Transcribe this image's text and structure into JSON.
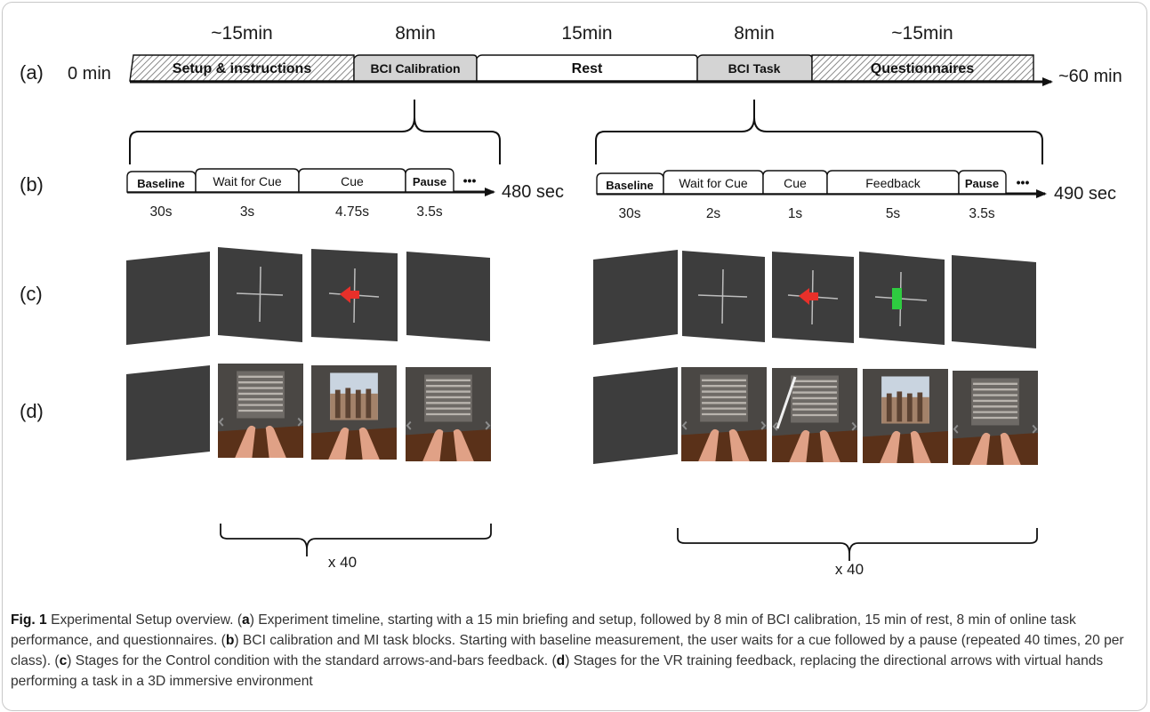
{
  "row_labels": [
    "(a)",
    "(b)",
    "(c)",
    "(d)"
  ],
  "timeline_a": {
    "start": "0 min",
    "end": "~60 min",
    "segments": [
      {
        "label": "Setup & instructions",
        "duration": "~15min"
      },
      {
        "label": "BCI Calibration",
        "duration": "8min"
      },
      {
        "label": "Rest",
        "duration": "15min"
      },
      {
        "label": "BCI Task",
        "duration": "8min"
      },
      {
        "label": "Questionnaires",
        "duration": "~15min"
      }
    ]
  },
  "calibration_b": {
    "end": "480 sec",
    "ellipsis": "•••",
    "stages": [
      {
        "label": "Baseline",
        "duration": "30s"
      },
      {
        "label": "Wait for Cue",
        "duration": "3s"
      },
      {
        "label": "Cue",
        "duration": "4.75s"
      },
      {
        "label": "Pause",
        "duration": "3.5s"
      }
    ]
  },
  "task_b": {
    "end": "490 sec",
    "ellipsis": "•••",
    "stages": [
      {
        "label": "Baseline",
        "duration": "30s"
      },
      {
        "label": "Wait for Cue",
        "duration": "2s"
      },
      {
        "label": "Cue",
        "duration": "1s"
      },
      {
        "label": "Feedback",
        "duration": "5s"
      },
      {
        "label": "Pause",
        "duration": "3.5s"
      }
    ]
  },
  "repeat_label_left": "x 40",
  "repeat_label_right": "x 40",
  "colors": {
    "panel": "#3d3d3d",
    "cue_arrow": "#e8302a",
    "feedback_bar": "#2ecc40",
    "segment_gray": "#d4d4d4",
    "hatch": "#8a8a8a"
  },
  "caption": {
    "fig": "Fig. 1",
    "intro": " Experimental Setup overview. (",
    "a_letter": "a",
    "a_text": ") Experiment timeline, starting with a 15 min briefing and setup, followed by 8 min of BCI calibration, 15 min of rest, 8 min of online task performance, and questionnaires. (",
    "b_letter": "b",
    "b_text": ") BCI calibration and MI task blocks. Starting with baseline measurement, the user waits for a cue followed by a pause (repeated 40 times, 20 per class). (",
    "c_letter": "c",
    "c_text": ") Stages for the Control condition with the standard arrows-and-bars feedback. (",
    "d_letter": "d",
    "d_text": ") Stages for the VR training feedback, replacing the directional arrows with virtual hands performing a task in a 3D immersive environment"
  }
}
